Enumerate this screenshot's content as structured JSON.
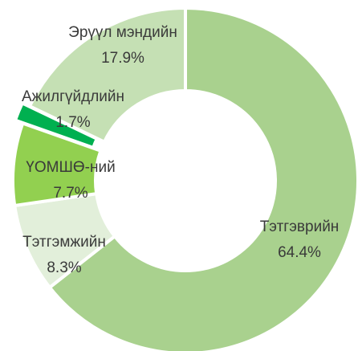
{
  "chart_data": {
    "type": "donut",
    "categories": [
      "Тэтгэврийн",
      "Тэтгэмжийн",
      "ҮОМШӨ-ний",
      "Ажилгүйдлийн",
      "Эрүүл мэндийн"
    ],
    "values": [
      64.4,
      8.3,
      7.7,
      1.7,
      17.9
    ],
    "value_labels": [
      "64.4%",
      "8.3%",
      "7.7%",
      "1.7%",
      "17.9%"
    ],
    "colors": [
      "#a9d18e",
      "#e2efda",
      "#92d050",
      "#00b050",
      "#c5e0b4"
    ],
    "exploded": [
      "Ажилгүйдлийн"
    ]
  }
}
